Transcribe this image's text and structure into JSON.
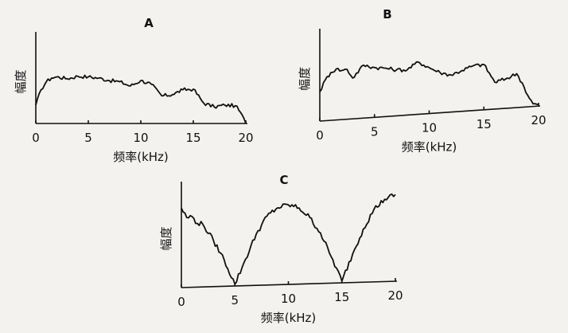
{
  "chart_data": [
    {
      "panel": "A",
      "type": "line",
      "title": "A",
      "xlabel": "频率(kHz)",
      "ylabel": "幅度",
      "xlim": [
        0,
        20
      ],
      "ylim": [
        0,
        1
      ],
      "xticks": [
        "0",
        "5",
        "10",
        "15",
        "20"
      ],
      "x": [
        0,
        0.5,
        1,
        1.5,
        2,
        3,
        4,
        5,
        6,
        7,
        8,
        9,
        10,
        11,
        12,
        13,
        14,
        15,
        16,
        17,
        18,
        19,
        19.5,
        20
      ],
      "values": [
        0.3,
        0.55,
        0.68,
        0.74,
        0.76,
        0.73,
        0.77,
        0.76,
        0.74,
        0.7,
        0.68,
        0.61,
        0.7,
        0.64,
        0.45,
        0.47,
        0.55,
        0.56,
        0.33,
        0.27,
        0.3,
        0.29,
        0.18,
        0.0
      ]
    },
    {
      "panel": "B",
      "type": "line",
      "title": "B",
      "xlabel": "频率(kHz)",
      "ylabel": "幅度",
      "xlim": [
        0,
        20
      ],
      "ylim": [
        0,
        1
      ],
      "xticks": [
        "0",
        "5",
        "10",
        "15",
        "20"
      ],
      "x": [
        0,
        0.5,
        1,
        1.5,
        2,
        2.5,
        3,
        4,
        5,
        6,
        7,
        8,
        9,
        10,
        11,
        12,
        13,
        14,
        15,
        16,
        17,
        18,
        18.5,
        19,
        19.5,
        20
      ],
      "values": [
        0.46,
        0.64,
        0.75,
        0.8,
        0.77,
        0.78,
        0.64,
        0.83,
        0.78,
        0.76,
        0.72,
        0.71,
        0.82,
        0.72,
        0.63,
        0.58,
        0.64,
        0.7,
        0.71,
        0.42,
        0.46,
        0.53,
        0.38,
        0.18,
        0.04,
        0.02
      ]
    },
    {
      "panel": "C",
      "type": "line",
      "title": "C",
      "xlabel": "频率(kHz)",
      "ylabel": "幅度",
      "xlim": [
        0,
        20
      ],
      "ylim": [
        0,
        1
      ],
      "xticks": [
        "0",
        "5",
        "10",
        "15",
        "20"
      ],
      "x": [
        0,
        0.5,
        1,
        1.5,
        2,
        3,
        4,
        5,
        6,
        7,
        8,
        9,
        10,
        11,
        12,
        13,
        14,
        15,
        16,
        17,
        18,
        19,
        20
      ],
      "values": [
        0.9,
        0.79,
        0.8,
        0.72,
        0.71,
        0.52,
        0.3,
        0.02,
        0.3,
        0.58,
        0.78,
        0.87,
        0.9,
        0.86,
        0.75,
        0.57,
        0.3,
        0.02,
        0.32,
        0.6,
        0.82,
        0.93,
        0.98
      ]
    }
  ]
}
